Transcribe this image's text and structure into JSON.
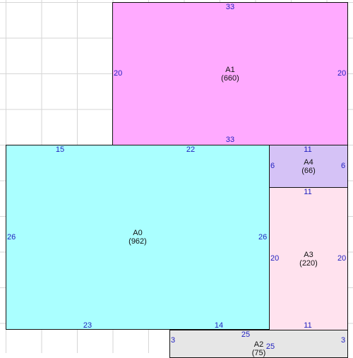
{
  "areas": [
    {
      "id": "A1",
      "name": "A1",
      "value": "(660)",
      "color": "#ffaaff",
      "dims": {
        "top": "33",
        "bottom": "33",
        "left": "20",
        "right": "20"
      }
    },
    {
      "id": "A0",
      "name": "A0",
      "value": "(962)",
      "color": "#aaffff",
      "dims": {
        "top_a": "15",
        "top_b": "22",
        "bottom_a": "23",
        "bottom_b": "14",
        "left": "26",
        "right": "26"
      }
    },
    {
      "id": "A4",
      "name": "A4",
      "value": "(66)",
      "color": "#d5c2f6",
      "dims": {
        "top": "11",
        "bottom": "11",
        "left": "6",
        "right": "6"
      }
    },
    {
      "id": "A3",
      "name": "A3",
      "value": "(220)",
      "color": "#ffe2ee",
      "dims": {
        "top": "11",
        "bottom": "11",
        "left": "20",
        "right": "20"
      }
    },
    {
      "id": "A2",
      "name": "A2",
      "value": "(75)",
      "color": "#e6e6e6",
      "dims": {
        "top": "25",
        "bottom": "25",
        "left": "3",
        "right": "3"
      }
    }
  ]
}
